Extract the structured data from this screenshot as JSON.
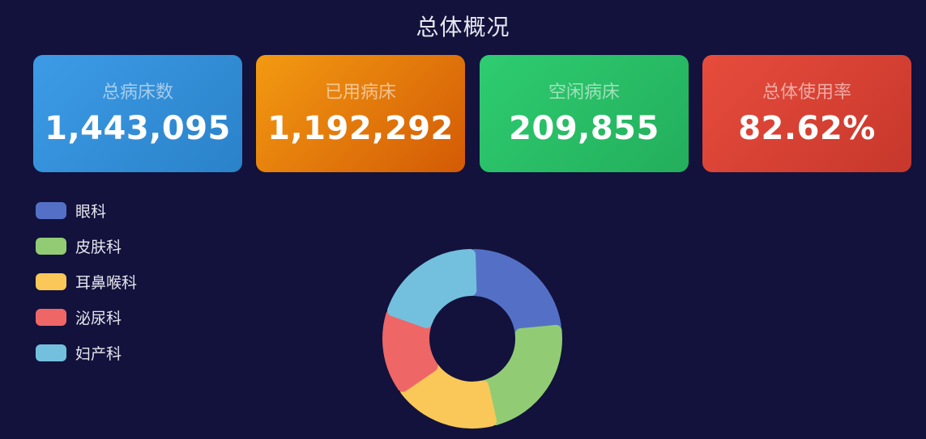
{
  "header": {
    "title": "总体概况"
  },
  "stats": [
    {
      "label": "总病床数",
      "value": "1,443,095"
    },
    {
      "label": "已用病床",
      "value": "1,192,292"
    },
    {
      "label": "空闲病床",
      "value": "209,855"
    },
    {
      "label": "总体使用率",
      "value": "82.62%"
    }
  ],
  "legend": {
    "items": [
      {
        "label": "眼科",
        "color": "#5470c6"
      },
      {
        "label": "皮肤科",
        "color": "#91cc75"
      },
      {
        "label": "耳鼻喉科",
        "color": "#fac858"
      },
      {
        "label": "泌尿科",
        "color": "#ee6666"
      },
      {
        "label": "妇产科",
        "color": "#73c0de"
      }
    ]
  },
  "chart_data": {
    "type": "pie",
    "subtype": "donut",
    "categories": [
      "眼科",
      "皮肤科",
      "耳鼻喉科",
      "泌尿科",
      "妇产科"
    ],
    "values": [
      23,
      23,
      19,
      15,
      20
    ],
    "colors": [
      "#5470c6",
      "#91cc75",
      "#fac858",
      "#ee6666",
      "#73c0de"
    ],
    "legend_position": "top-left"
  }
}
